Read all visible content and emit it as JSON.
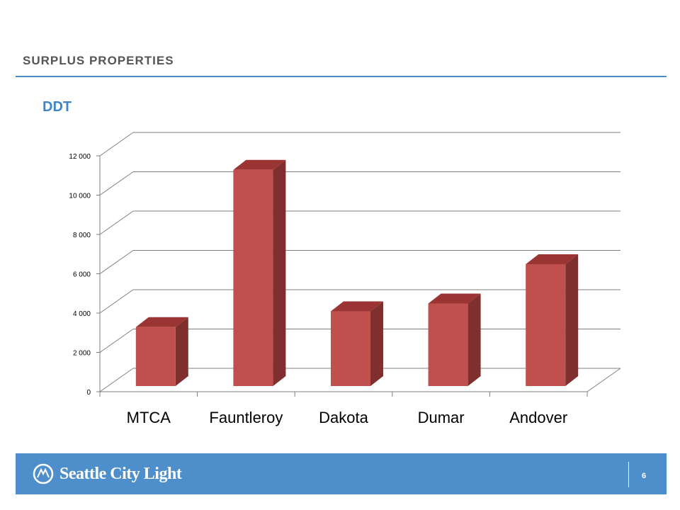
{
  "header": {
    "title": "SURPLUS PROPERTIES"
  },
  "subtitle": "DDT",
  "footer": {
    "logo_text": "Seattle City Light",
    "page_number": "6"
  },
  "colors": {
    "bar_front": "#c0504d",
    "bar_side": "#7f2f2e",
    "bar_top": "#9b3533",
    "accent": "#4e8fcb",
    "gridline": "#7f7f7f"
  },
  "chart_data": {
    "type": "bar",
    "style": "3d-column",
    "categories": [
      "MTCA",
      "Fauntleroy",
      "Dakota",
      "Dumar",
      "Andover"
    ],
    "values": [
      3000,
      11000,
      3800,
      4200,
      6200
    ],
    "ylim": [
      0,
      12000
    ],
    "yticks": [
      0,
      2000,
      4000,
      6000,
      8000,
      10000,
      12000
    ],
    "ytick_labels": [
      "0",
      "2 000",
      "4 000",
      "6 000",
      "8 000",
      "10 000",
      "12 000"
    ],
    "grid": true,
    "legend": "none",
    "title": "",
    "xlabel": "",
    "ylabel": ""
  }
}
